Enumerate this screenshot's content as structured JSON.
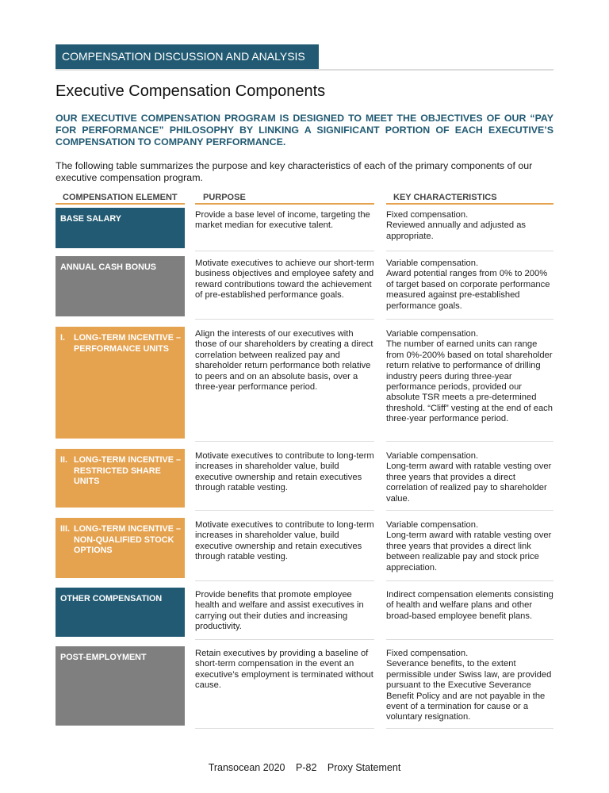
{
  "section_tab": "COMPENSATION DISCUSSION AND ANALYSIS",
  "title": "Executive Compensation Components",
  "lead": "OUR EXECUTIVE COMPENSATION PROGRAM IS DESIGNED TO MEET THE OBJECTIVES OF OUR “PAY FOR PERFORMANCE” PHILOSOPHY BY LINKING A SIGNIFICANT PORTION OF EACH EXECUTIVE’S COMPENSATION TO COMPANY PERFORMANCE.",
  "intro": "The following table summarizes the purpose and key characteristics of each of the primary components of our executive compensation program.",
  "colors": {
    "teal": "#215a72",
    "gray": "#7f7f7f",
    "orange": "#e5a24f"
  },
  "table": {
    "headers": [
      "COMPENSATION ELEMENT",
      "PURPOSE",
      "KEY CHARACTERISTICS"
    ],
    "rows": [
      {
        "num": "",
        "element": "BASE SALARY",
        "color": "#215a72",
        "purpose": "Provide a base level of income, targeting the market median for executive talent.",
        "key": [
          "Fixed compensation.",
          "Reviewed annually and adjusted as appropriate."
        ]
      },
      {
        "num": "",
        "element": "ANNUAL CASH BONUS",
        "color": "#7f7f7f",
        "purpose": "Motivate executives to achieve our short-term business objectives and employee safety and reward contributions toward the achievement of pre-established performance goals.",
        "key": [
          "Variable compensation.",
          "Award potential ranges from 0% to 200% of target based on corporate performance measured against pre-established performance goals."
        ]
      },
      {
        "num": "I.",
        "element": "LONG-TERM INCENTIVE – PERFORMANCE UNITS",
        "color": "#e5a24f",
        "purpose": "Align the interests of our executives with those of our shareholders by creating a direct correlation between realized pay and shareholder return performance both relative to peers and on an absolute basis, over a three-year performance period.",
        "key": [
          "Variable compensation.",
          "The number of earned units can range from 0%-200% based on total shareholder return relative to performance of drilling industry peers during three-year performance periods, provided our absolute TSR meets a pre-determined threshold. “Cliff” vesting at the end of each three-year performance period."
        ]
      },
      {
        "num": "II.",
        "element": "LONG-TERM INCENTIVE – RESTRICTED SHARE UNITS",
        "color": "#e5a24f",
        "purpose": "Motivate executives to contribute to long-term increases in shareholder value, build executive ownership and retain executives through ratable vesting.",
        "key": [
          "Variable compensation.",
          "Long-term award with ratable vesting over three years that provides a direct correlation of realized pay to shareholder value."
        ]
      },
      {
        "num": "III.",
        "element": "LONG-TERM INCENTIVE – NON-QUALIFIED STOCK OPTIONS",
        "color": "#e5a24f",
        "purpose": "Motivate executives to contribute to long-term increases in shareholder value, build executive ownership and retain executives through ratable vesting.",
        "key": [
          "Variable compensation.",
          "Long-term award with ratable vesting over three years that provides a direct link between realizable pay and stock price appreciation."
        ]
      },
      {
        "num": "",
        "element": "OTHER COMPENSATION",
        "color": "#215a72",
        "purpose": "Provide benefits that promote employee health and welfare and assist executives in carrying out their duties and increasing productivity.",
        "key": [
          "Indirect compensation elements consisting of health and welfare plans and other broad-based employee benefit plans."
        ]
      },
      {
        "num": "",
        "element": "POST-EMPLOYMENT",
        "color": "#7f7f7f",
        "purpose": "Retain executives by providing a baseline of short-term compensation in the event an executive’s employment is terminated without cause.",
        "key": [
          "Fixed compensation.",
          "Severance benefits, to the extent permissible under Swiss law, are provided pursuant to the Executive Severance Benefit Policy and are not payable in the event of a termination for cause or a voluntary resignation."
        ]
      }
    ]
  },
  "footer": {
    "company": "Transocean 2020",
    "page": "P-82",
    "doc": "Proxy Statement"
  }
}
